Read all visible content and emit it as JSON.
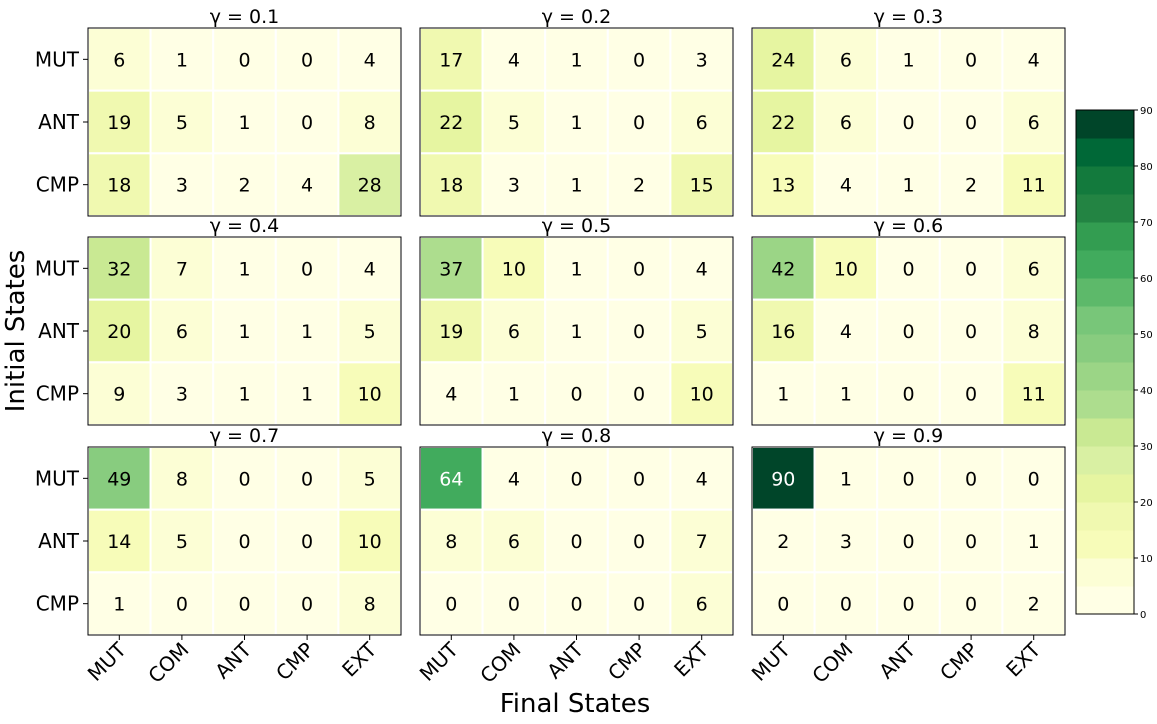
{
  "chart_data": {
    "type": "heatmap",
    "xlabel": "Final States",
    "ylabel": "Initial States",
    "row_labels": [
      "MUT",
      "ANT",
      "CMP"
    ],
    "col_labels": [
      "MUT",
      "COM",
      "ANT",
      "CMP",
      "EXT"
    ],
    "panels": [
      {
        "title": "γ = 0.1",
        "values": [
          [
            6,
            1,
            0,
            0,
            4
          ],
          [
            19,
            5,
            1,
            0,
            8
          ],
          [
            18,
            3,
            2,
            4,
            28
          ]
        ]
      },
      {
        "title": "γ = 0.2",
        "values": [
          [
            17,
            4,
            1,
            0,
            3
          ],
          [
            22,
            5,
            1,
            0,
            6
          ],
          [
            18,
            3,
            1,
            2,
            15
          ]
        ]
      },
      {
        "title": "γ = 0.3",
        "values": [
          [
            24,
            6,
            1,
            0,
            4
          ],
          [
            22,
            6,
            0,
            0,
            6
          ],
          [
            13,
            4,
            1,
            2,
            11
          ]
        ]
      },
      {
        "title": "γ = 0.4",
        "values": [
          [
            32,
            7,
            1,
            0,
            4
          ],
          [
            20,
            6,
            1,
            1,
            5
          ],
          [
            9,
            3,
            1,
            1,
            10
          ]
        ]
      },
      {
        "title": "γ = 0.5",
        "values": [
          [
            37,
            10,
            1,
            0,
            4
          ],
          [
            19,
            6,
            1,
            0,
            5
          ],
          [
            4,
            1,
            0,
            0,
            10
          ]
        ]
      },
      {
        "title": "γ = 0.6",
        "values": [
          [
            42,
            10,
            0,
            0,
            6
          ],
          [
            16,
            4,
            0,
            0,
            8
          ],
          [
            1,
            1,
            0,
            0,
            11
          ]
        ]
      },
      {
        "title": "γ = 0.7",
        "values": [
          [
            49,
            8,
            0,
            0,
            5
          ],
          [
            14,
            5,
            0,
            0,
            10
          ],
          [
            1,
            0,
            0,
            0,
            8
          ]
        ]
      },
      {
        "title": "γ = 0.8",
        "values": [
          [
            64,
            4,
            0,
            0,
            4
          ],
          [
            8,
            6,
            0,
            0,
            7
          ],
          [
            0,
            0,
            0,
            0,
            6
          ]
        ]
      },
      {
        "title": "γ = 0.9",
        "values": [
          [
            90,
            1,
            0,
            0,
            0
          ],
          [
            2,
            3,
            0,
            0,
            1
          ],
          [
            0,
            0,
            0,
            0,
            2
          ]
        ]
      }
    ],
    "colorbar": {
      "range": [
        0,
        90
      ],
      "levels": 18,
      "ticks": [
        0,
        10,
        20,
        30,
        40,
        50,
        60,
        70,
        80,
        90
      ],
      "colors": [
        "#ffffe5",
        "#fcfed5",
        "#f7fcb9",
        "#f0f9b0",
        "#e6f5a1",
        "#d9f0a3",
        "#c9e993",
        "#addd8e",
        "#9bd586",
        "#88cc7f",
        "#78c679",
        "#5db96a",
        "#41ab5d",
        "#339d51",
        "#238443",
        "#137a3d",
        "#006837",
        "#004529"
      ]
    }
  }
}
